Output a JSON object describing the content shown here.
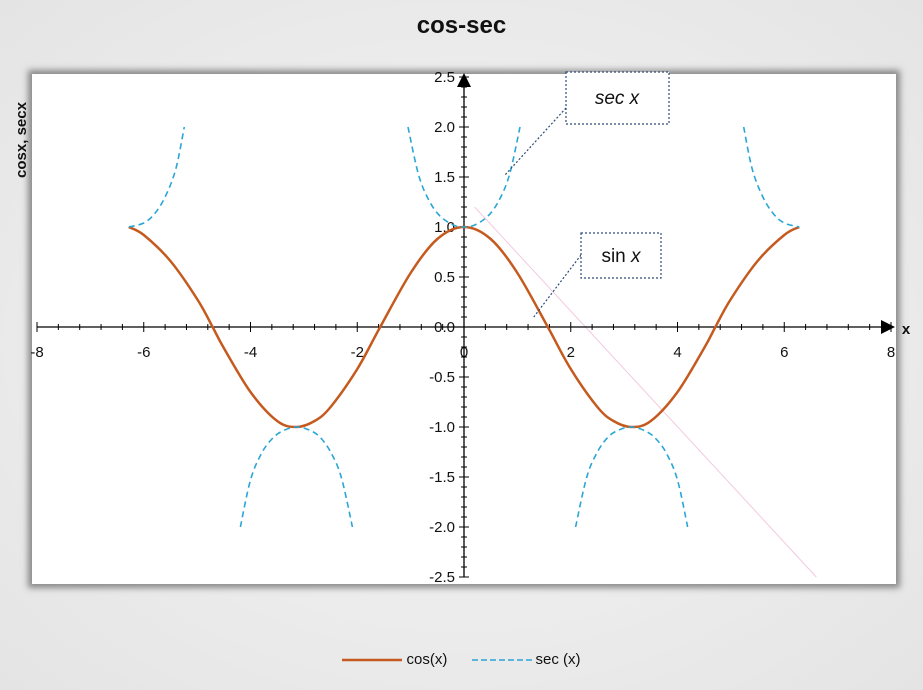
{
  "chart_data": {
    "type": "line",
    "title": "cos-sec",
    "xlabel": "x",
    "ylabel": "cosx, secx",
    "xlim": [
      -8,
      8
    ],
    "ylim": [
      -2.5,
      2.5
    ],
    "x_ticks": [
      -8,
      -6,
      -4,
      -2,
      0,
      2,
      4,
      6,
      8
    ],
    "y_ticks": [
      "2.5",
      "2.0",
      "1.5",
      "1.0",
      "0.5",
      "0.0",
      "-0.5",
      "-1.0",
      "-1.5",
      "-2.0",
      "-2.5"
    ],
    "grid": false,
    "legend_position": "bottom",
    "series": [
      {
        "name": "cos(x)",
        "color": "#c55a1e",
        "style": "solid",
        "x": [
          -6.28,
          -6.0,
          -5.5,
          -5.0,
          -4.71,
          -4.5,
          -4.0,
          -3.5,
          -3.14,
          -2.8,
          -2.5,
          -2.0,
          -1.57,
          -1.0,
          -0.5,
          0,
          0.5,
          1.0,
          1.57,
          2.0,
          2.5,
          2.8,
          3.14,
          3.5,
          4.0,
          4.5,
          4.71,
          5.0,
          5.5,
          6.0,
          6.28
        ],
        "y": [
          1.0,
          0.92,
          0.66,
          0.28,
          0.0,
          -0.21,
          -0.65,
          -0.94,
          -1.0,
          -0.94,
          -0.8,
          -0.42,
          0.0,
          0.54,
          0.88,
          1.0,
          0.88,
          0.54,
          0.0,
          -0.42,
          -0.8,
          -0.94,
          -1.0,
          -0.94,
          -0.65,
          -0.21,
          0.0,
          0.28,
          0.66,
          0.92,
          1.0
        ]
      },
      {
        "name": "sec (x)",
        "color": "#2aa6d6",
        "style": "dashed",
        "segments": [
          {
            "x": [
              -6.28,
              -6.0,
              -5.8,
              -5.6,
              -5.4,
              -5.24
            ],
            "y": [
              1.0,
              1.04,
              1.13,
              1.3,
              1.58,
              2.0
            ]
          },
          {
            "x": [
              -4.19,
              -4.0,
              -3.8,
              -3.6,
              -3.4,
              -3.14,
              -2.9,
              -2.7,
              -2.5,
              -2.3,
              -2.09
            ],
            "y": [
              -2.0,
              -1.53,
              -1.27,
              -1.12,
              -1.04,
              -1.0,
              -1.03,
              -1.1,
              -1.25,
              -1.5,
              -2.0
            ]
          },
          {
            "x": [
              -1.05,
              -0.85,
              -0.65,
              -0.45,
              -0.2,
              0,
              0.2,
              0.45,
              0.65,
              0.85,
              1.05
            ],
            "y": [
              2.0,
              1.52,
              1.26,
              1.11,
              1.02,
              1.0,
              1.02,
              1.11,
              1.26,
              1.52,
              2.0
            ]
          },
          {
            "x": [
              2.09,
              2.3,
              2.5,
              2.7,
              2.9,
              3.14,
              3.4,
              3.6,
              3.8,
              4.0,
              4.19
            ],
            "y": [
              -2.0,
              -1.5,
              -1.25,
              -1.1,
              -1.03,
              -1.0,
              -1.04,
              -1.12,
              -1.27,
              -1.53,
              -2.0
            ]
          },
          {
            "x": [
              5.24,
              5.4,
              5.6,
              5.8,
              6.0,
              6.28
            ],
            "y": [
              2.0,
              1.58,
              1.3,
              1.13,
              1.04,
              1.0
            ]
          }
        ]
      }
    ],
    "annotations": [
      {
        "text": "sec x",
        "style": "italic"
      },
      {
        "text": "sin x",
        "italic_part": "x"
      }
    ]
  }
}
